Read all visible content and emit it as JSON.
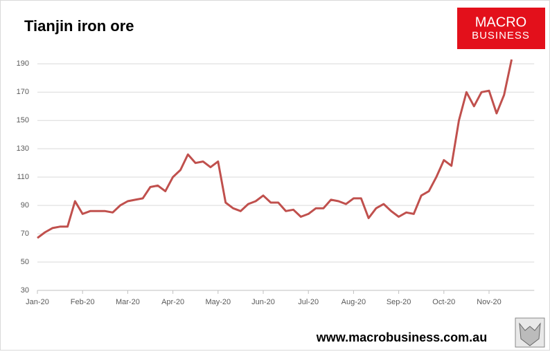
{
  "chart_data": {
    "type": "line",
    "title": "Tianjin iron ore",
    "categories": [
      "Jan-20",
      null,
      null,
      null,
      null,
      null,
      "Feb-20",
      null,
      null,
      null,
      null,
      null,
      "Mar-20",
      null,
      null,
      null,
      null,
      null,
      "Apr-20",
      null,
      null,
      null,
      null,
      null,
      "May-20",
      null,
      null,
      null,
      null,
      null,
      "Jun-20",
      null,
      null,
      null,
      null,
      null,
      "Jul-20",
      null,
      null,
      null,
      null,
      null,
      "Aug-20",
      null,
      null,
      null,
      null,
      null,
      "Sep-20",
      null,
      null,
      null,
      null,
      null,
      "Oct-20",
      null,
      null,
      null,
      null,
      null,
      "Nov-20",
      null,
      null,
      null,
      null,
      null
    ],
    "series": [
      {
        "name": "Tianjin iron ore",
        "color": "#c0504d",
        "values": [
          67,
          71,
          74,
          75,
          75,
          93,
          84,
          86,
          86,
          86,
          85,
          90,
          93,
          94,
          95,
          103,
          104,
          100,
          110,
          115,
          126,
          120,
          121,
          117,
          121,
          92,
          88,
          86,
          91,
          93,
          97,
          92,
          92,
          86,
          87,
          82,
          84,
          88,
          88,
          94,
          93,
          91,
          95,
          95,
          81,
          88,
          91,
          86,
          82,
          85,
          84,
          97,
          100,
          110,
          122,
          118,
          150,
          170,
          160,
          170,
          171,
          155,
          168,
          193,
          null,
          null
        ]
      }
    ],
    "ylim": [
      30,
      196
    ],
    "yticks": [
      30,
      50,
      70,
      90,
      110,
      130,
      150,
      170,
      190
    ],
    "grid": true
  },
  "logo": {
    "line1": "MACRO",
    "line2": "BUSINESS"
  },
  "footer": "www.macrobusiness.com.au"
}
